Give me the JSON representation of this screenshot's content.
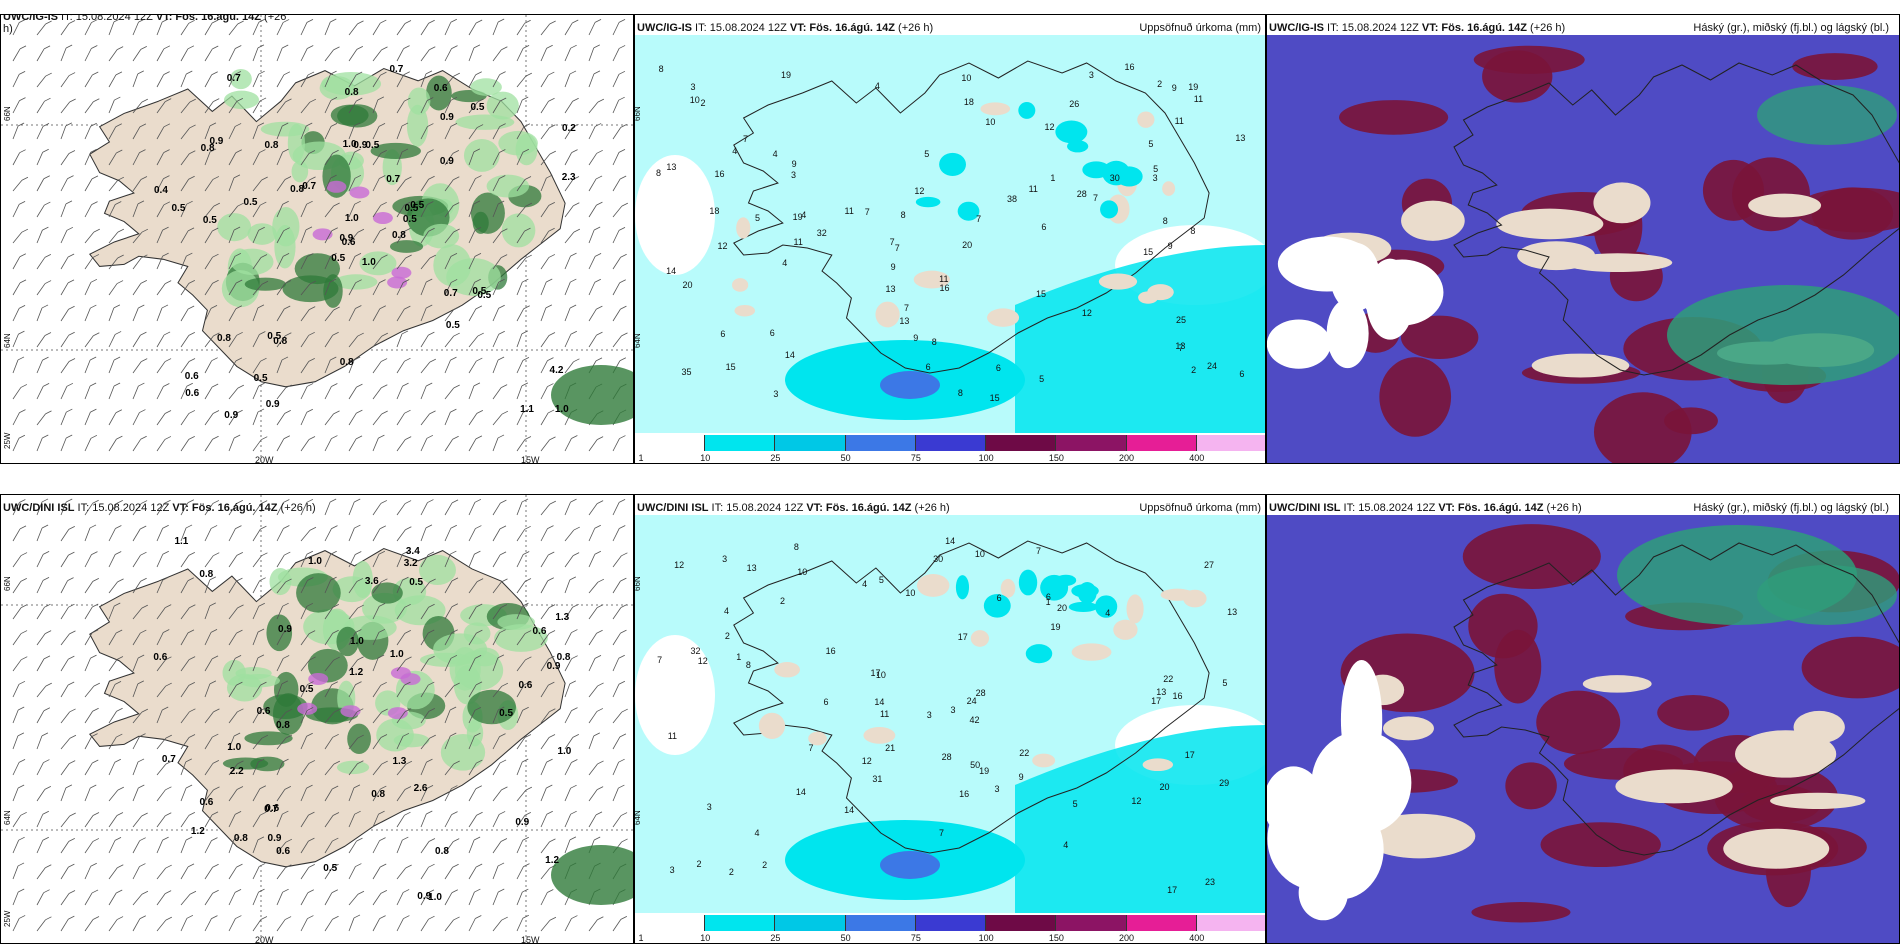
{
  "colors": {
    "land": "#eadccc",
    "precip_light": "#b8fbfb",
    "precip_mid": "#00e5ee",
    "cloud_high": "#7a1438",
    "cloud_mid": "#4f4bc4",
    "cloud_low": "#2e9e7a"
  },
  "rows": [
    {
      "model_label": "UWC/IG-IS",
      "wind_panel": {
        "title_model": "UWC/IG-IS",
        "title_it": " IT: 15.08.2024 12Z ",
        "title_vt": "VT: Fös. 16.ágú. 14Z",
        "title_step": " (+26",
        "title_step2": "h)",
        "lat_66": "66N",
        "lat_64": "64N",
        "lon_25": "25W",
        "lon_20": "20W",
        "lon_15": "15W",
        "values": [
          "1.0",
          "0.8",
          "0.6",
          "0.6",
          "0.5",
          "0.8",
          "0.6",
          "0.5",
          "0.9",
          "0.8",
          "0.7",
          "1.0",
          "0.5",
          "0.2",
          "0.5",
          "0.9",
          "0.9",
          "1.0",
          "0.7",
          "0.8",
          "0.7",
          "0.6",
          "0.5",
          "0.9",
          "0.5",
          "0.5",
          "0.9",
          "0.8",
          "0.5",
          "0.7",
          "2.3",
          "0.9",
          "0.8",
          "1.0",
          "0.8",
          "0.5",
          "0.5",
          "1.1",
          "4.2",
          "0.5",
          "0.7",
          "0.8",
          "0.5",
          "0.5",
          "0.9",
          "0.4",
          "0.5"
        ]
      },
      "precip_panel": {
        "title_model": "UWC/IG-IS",
        "title_it": " IT: 15.08.2024 12Z ",
        "title_vt": "VT: Fös. 16.ágú. 14Z",
        "title_step": " (+26 h)",
        "right_title": "Uppsöfnuð úrkoma (mm)",
        "lat_66": "66N",
        "lat_64": "64N",
        "values": [
          "4",
          "3",
          "7",
          "4",
          "2",
          "4",
          "10",
          "16",
          "18",
          "9",
          "7",
          "11",
          "13",
          "6",
          "5",
          "6",
          "8",
          "6",
          "7",
          "11",
          "11",
          "15",
          "20",
          "25",
          "32",
          "24",
          "19",
          "8",
          "16",
          "15",
          "12",
          "13",
          "8",
          "8",
          "11",
          "7",
          "9",
          "9",
          "7",
          "1",
          "2",
          "3",
          "6",
          "7",
          "8",
          "10",
          "19",
          "35",
          "38",
          "28",
          "18",
          "14",
          "20",
          "30",
          "12",
          "13",
          "15",
          "12",
          "9",
          "19",
          "26",
          "4",
          "5",
          "5",
          "5",
          "6",
          "4",
          "2",
          "3",
          "16",
          "15",
          "10",
          "13",
          "11",
          "14",
          "9",
          "11",
          "13",
          "8",
          "7",
          "6",
          "5",
          "3",
          "3",
          "8",
          "12",
          "7"
        ]
      },
      "cloud_panel": {
        "title_model": "UWC/IG-IS",
        "title_it": " IT: 15.08.2024 12Z ",
        "title_vt": "VT: Fös. 16.ágú. 14Z",
        "title_step": " (+26 h)",
        "right_title": "Háský (gr.), miðský (fj.bl.) og lágský (bl.)"
      }
    },
    {
      "model_label": "UWC/DINI ISL",
      "wind_panel": {
        "title_model": "UWC/DINI ISL",
        "title_it": " IT: 15.08.2024 12Z ",
        "title_vt": "VT: Fös. 16.ágú. 14Z",
        "title_step": " (+26 h)",
        "title_step2": "",
        "lat_66": "66N",
        "lat_64": "64N",
        "lon_25": "25W",
        "lon_20": "20W",
        "lon_15": "15W",
        "values": [
          "0.6",
          "0.5",
          "0.5",
          "2.2",
          "0.6",
          "1.2",
          "1.0",
          "1.2",
          "0.8",
          "1.0",
          "0.9",
          "0.6",
          "0.8",
          "0.7",
          "0.9",
          "0.6",
          "1.0",
          "0.8",
          "0.6",
          "0.5",
          "0.8",
          "1.1",
          "0.6",
          "0.9",
          "1.0",
          "0.8",
          "0.6",
          "0.9",
          "1.2",
          "2.6",
          "1.0",
          "0.5",
          "3.2",
          "1.3",
          "3.6",
          "1.0",
          "0.8",
          "1.3",
          "0.9",
          "3.4",
          "0.7"
        ]
      },
      "precip_panel": {
        "title_model": "UWC/DINI ISL",
        "title_it": " IT: 15.08.2024 12Z ",
        "title_vt": "VT: Fös. 16.ágú. 14Z",
        "title_step": " (+26 h)",
        "right_title": "Uppsöfnuð úrkoma (mm)",
        "lat_66": "66N",
        "lat_64": "64N",
        "values": [
          "4",
          "3",
          "5",
          "8",
          "10",
          "19",
          "17",
          "21",
          "23",
          "28",
          "17",
          "22",
          "27",
          "32",
          "19",
          "12",
          "11",
          "4",
          "2",
          "1",
          "7",
          "10",
          "6",
          "5",
          "9",
          "16",
          "31",
          "20",
          "4",
          "3",
          "2",
          "2",
          "1",
          "4",
          "3",
          "5",
          "8",
          "7",
          "12",
          "16",
          "22",
          "42",
          "50",
          "20",
          "30",
          "28",
          "24",
          "29",
          "16",
          "13",
          "14",
          "17",
          "17",
          "17",
          "13",
          "14",
          "11",
          "13",
          "14",
          "3",
          "2",
          "3",
          "10",
          "12",
          "14",
          "7",
          "12",
          "10",
          "7",
          "6",
          "6",
          "3",
          "2",
          "4"
        ]
      },
      "cloud_panel": {
        "title_model": "UWC/DINI ISL",
        "title_it": " IT: 15.08.2024 12Z ",
        "title_vt": "VT: Fös. 16.ágú. 14Z",
        "title_step": " (+26 h)",
        "right_title": "Háský (gr.), miðský (fj.bl.) og lágský (bl.)"
      }
    }
  ],
  "colorbar": {
    "labels": [
      "1",
      "10",
      "25",
      "50",
      "75",
      "100",
      "150",
      "200",
      "400"
    ],
    "colors": [
      "#ffffff",
      "#00e5ee",
      "#00c8e6",
      "#3c78e6",
      "#3a3ad2",
      "#6e0a46",
      "#8c1464",
      "#e61e96",
      "#f5b4f0"
    ]
  }
}
